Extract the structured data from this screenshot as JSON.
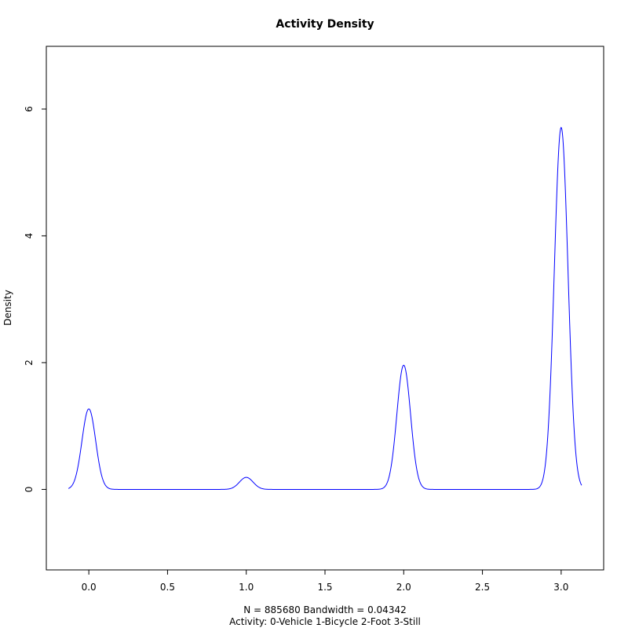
{
  "chart_data": {
    "type": "line",
    "title": "Activity Density",
    "ylabel": "Density",
    "xlabel_line1": "N = 885680   Bandwidth = 0.04342",
    "xlabel_line2": "Activity:   0-Vehicle   1-Bicycle   2-Foot   3-Still",
    "xlim": [
      -0.27,
      3.27
    ],
    "ylim": [
      -1.27,
      6.99
    ],
    "x_ticks": [
      0.0,
      0.5,
      1.0,
      1.5,
      2.0,
      2.5,
      3.0
    ],
    "x_tick_labels": [
      "0.0",
      "0.5",
      "1.0",
      "1.5",
      "2.0",
      "2.5",
      "3.0"
    ],
    "y_ticks": [
      0,
      2,
      4,
      6
    ],
    "y_tick_labels": [
      "0",
      "2",
      "4",
      "6"
    ],
    "line_color": "#0000ff",
    "grid": false,
    "x_range": [
      -0.13,
      3.13
    ],
    "bandwidth": 0.04342,
    "peaks": [
      {
        "x": 0,
        "height": 1.27
      },
      {
        "x": 1,
        "height": 0.19
      },
      {
        "x": 2,
        "height": 1.96
      },
      {
        "x": 3,
        "height": 5.71
      }
    ]
  }
}
